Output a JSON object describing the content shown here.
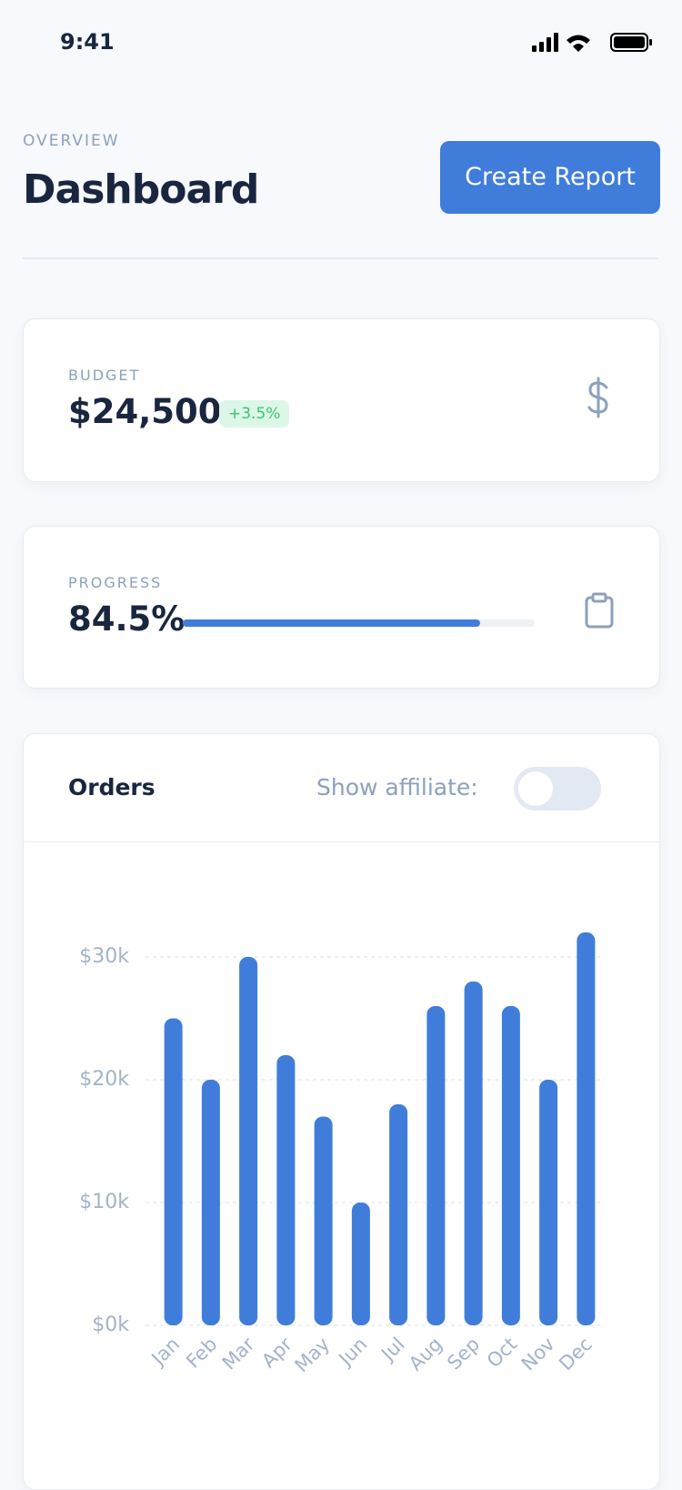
{
  "status_bar": {
    "time": "9:41"
  },
  "header": {
    "overline": "OVERVIEW",
    "title": "Dashboard",
    "button": "Create Report"
  },
  "budget": {
    "label": "BUDGET",
    "value": "$24,500",
    "badge": "+3.5%"
  },
  "progress": {
    "label": "PROGRESS",
    "value": 84.5,
    "value_label": "84.5%"
  },
  "orders": {
    "toggle_label": "Show affiliate:"
  },
  "chart_data": {
    "type": "bar",
    "title": "Orders",
    "categories": [
      "Jan",
      "Feb",
      "Mar",
      "Apr",
      "May",
      "Jun",
      "Jul",
      "Aug",
      "Sep",
      "Oct",
      "Nov",
      "Dec"
    ],
    "values": [
      25000,
      20000,
      30000,
      22000,
      17000,
      10000,
      18000,
      26000,
      28000,
      26000,
      20000,
      32000
    ],
    "color": "#407ddb",
    "ylim": [
      0,
      32000
    ],
    "yticks": [
      {
        "value": 0,
        "label": "$0k"
      },
      {
        "value": 10000,
        "label": "$10k"
      },
      {
        "value": 20000,
        "label": "$20k"
      },
      {
        "value": 30000,
        "label": "$30k"
      }
    ],
    "grid": true
  }
}
